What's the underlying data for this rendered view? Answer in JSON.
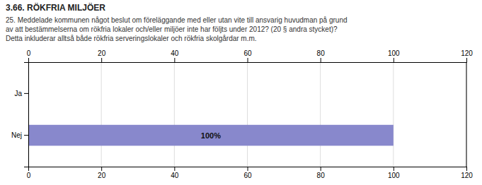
{
  "chart_data": {
    "type": "bar",
    "orientation": "horizontal",
    "title": "3.66. RÖKFRIA MILJÖER",
    "annotations": [
      "25. Meddelade kommunen något beslut om föreläggande med eller utan vite till ansvarig huvudman på grund",
      "av att bestämmelserna om rökfria lokaler och/eller miljöer inte har följts under 2012? (20 § andra stycket)?",
      "Detta inkluderar alltså både rökfria serveringslokaler och rökfria skolgårdar m.m."
    ],
    "categories": [
      "Ja",
      "Nej"
    ],
    "values": [
      0,
      100
    ],
    "data_labels": true,
    "value_labels": [
      null,
      "100%"
    ],
    "color": "#8888cc",
    "xlim": [
      0,
      120
    ],
    "xticks": [
      0,
      20,
      40,
      60,
      80,
      100,
      120
    ],
    "grid": true
  }
}
